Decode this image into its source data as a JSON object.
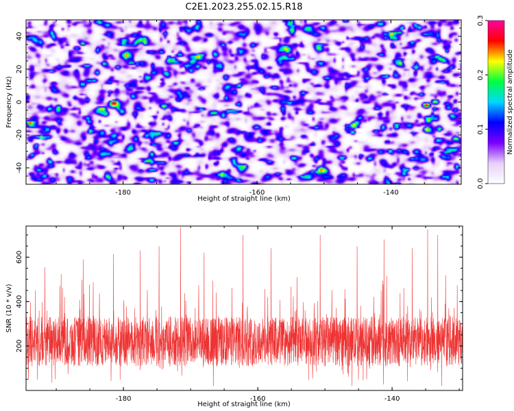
{
  "figure_title": "C2E1.2023.255.02.15.R18",
  "colors": {
    "snr_line": "#ee3333",
    "colormap": [
      "#ffffff",
      "#e8d0f8",
      "#7a00ff",
      "#0000ff",
      "#00d8ff",
      "#00ff40",
      "#ffff00",
      "#ff0000",
      "#ff00a0"
    ]
  },
  "chart_data": [
    {
      "type": "heatmap",
      "title": "",
      "xlabel": "Height of straight line (km)",
      "ylabel": "Frequency (Hz)",
      "xlim": [
        -194.5,
        -129.5
      ],
      "ylim": [
        -50,
        50
      ],
      "xticks": [
        -180,
        -160,
        -140
      ],
      "yticks": [
        -40,
        -20,
        0,
        20,
        40
      ],
      "colorbar": {
        "label": "Normalized spectral amplitude",
        "range": [
          0.0,
          0.3
        ],
        "ticks": [
          "0.0",
          "0.1",
          "0.2",
          "0.3"
        ]
      },
      "background_level": 0.03,
      "notable_peaks": [
        {
          "x": -134.8,
          "y": -1.5,
          "value": 0.29
        },
        {
          "x": -133.5,
          "y": 0.5,
          "value": 0.22
        },
        {
          "x": -131.5,
          "y": -3.0,
          "value": 0.15
        },
        {
          "x": -130.5,
          "y": -4.5,
          "value": 0.14
        },
        {
          "x": -194.5,
          "y": 1.0,
          "value": 0.09
        },
        {
          "x": -187.0,
          "y": 33.0,
          "value": 0.14
        }
      ]
    },
    {
      "type": "line",
      "title": "",
      "xlabel": "Height of straight line (km)",
      "ylabel": "SNR (10 * v/v)",
      "xlim": [
        -194.5,
        -129.5
      ],
      "ylim": [
        0,
        740
      ],
      "xticks": [
        -180,
        -160,
        -140
      ],
      "yticks": [
        200,
        400,
        600
      ],
      "series": [
        {
          "x_range": [
            -194.5,
            -129.5
          ],
          "typical_value": 220,
          "typical_band": [
            100,
            380
          ],
          "notable_peaks": [
            {
              "x": -191.7,
              "y": 555
            },
            {
              "x": -186.0,
              "y": 590
            },
            {
              "x": -181.5,
              "y": 615
            },
            {
              "x": -177.5,
              "y": 630
            },
            {
              "x": -174.7,
              "y": 650
            },
            {
              "x": -171.5,
              "y": 735
            },
            {
              "x": -168.0,
              "y": 620
            },
            {
              "x": -162.2,
              "y": 700
            },
            {
              "x": -158.0,
              "y": 640
            },
            {
              "x": -150.7,
              "y": 700
            },
            {
              "x": -145.2,
              "y": 650
            },
            {
              "x": -141.2,
              "y": 680
            },
            {
              "x": -137.0,
              "y": 640
            },
            {
              "x": -134.7,
              "y": 725
            },
            {
              "x": -133.2,
              "y": 700
            }
          ]
        }
      ]
    }
  ]
}
